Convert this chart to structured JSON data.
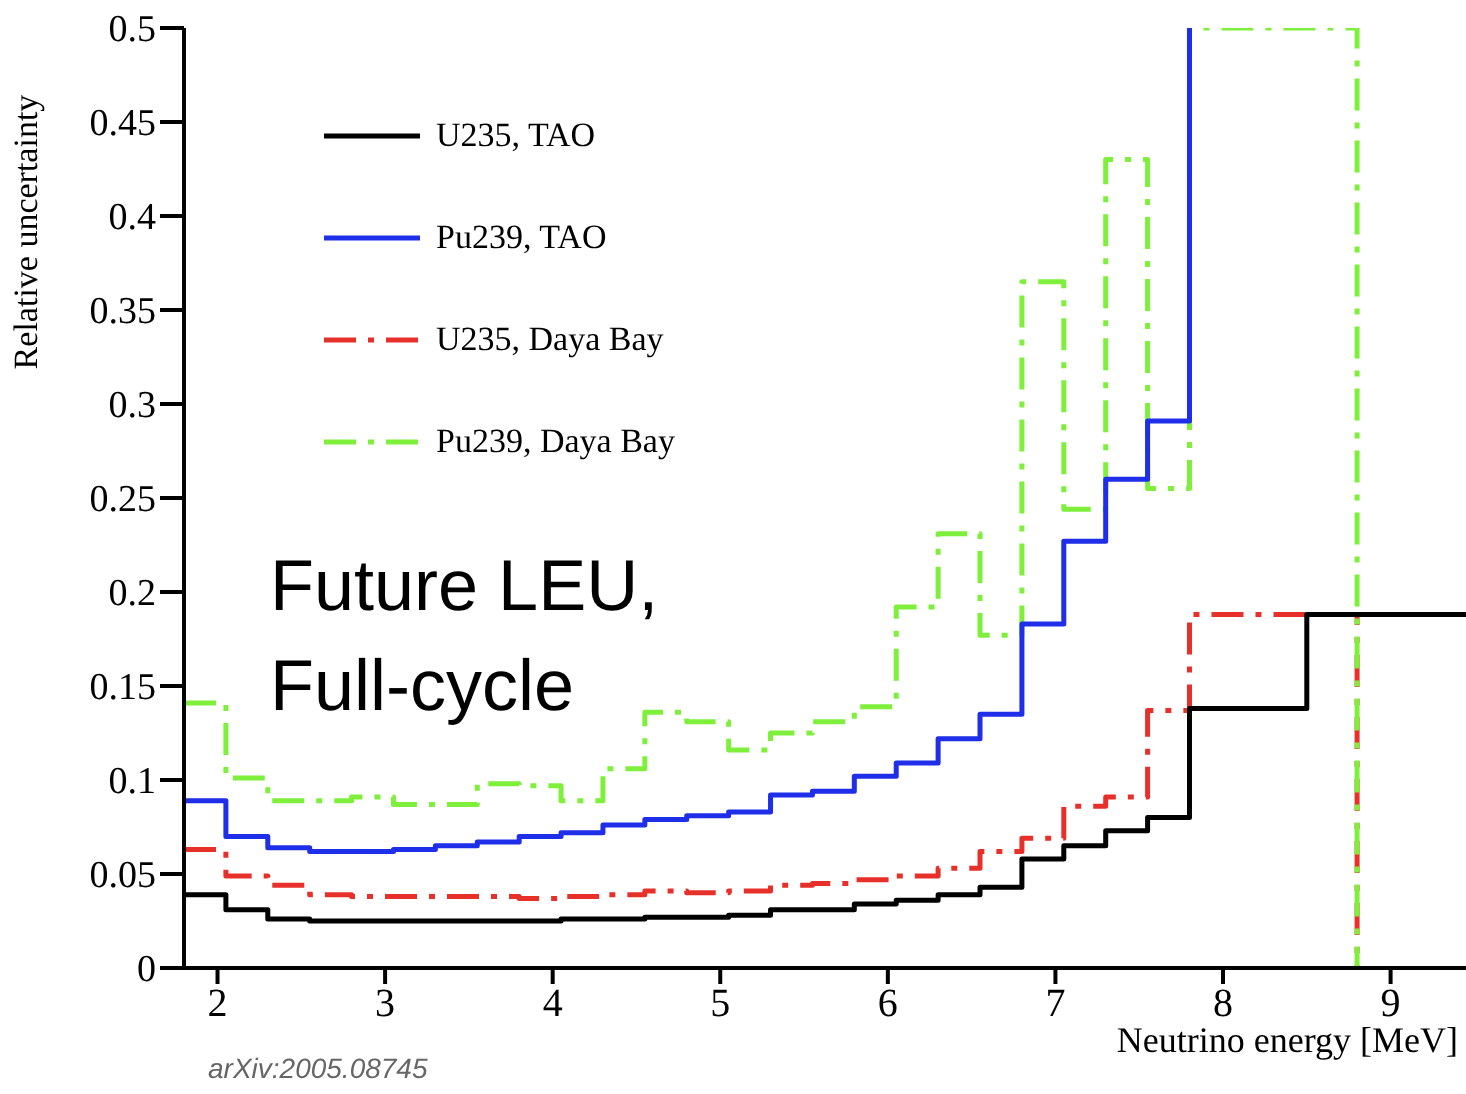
{
  "chart_data": {
    "type": "step",
    "xlabel": "Neutrino energy [MeV]",
    "ylabel": "Relative uncertainty",
    "xlim": [
      1.8,
      9.45
    ],
    "xticks": [
      2,
      3,
      4,
      5,
      6,
      7,
      8,
      9
    ],
    "ylim": [
      0,
      0.5
    ],
    "yticks": [
      0,
      0.05,
      0.1,
      0.15,
      0.2,
      0.25,
      0.3,
      0.35,
      0.4,
      0.45,
      0.5
    ],
    "legend": "top left",
    "grid": false,
    "marker": "none",
    "annotations": [
      "Future LEU, Full-cycle",
      "arXiv:2005.08745"
    ],
    "series": [
      {
        "name": "U235, TAO",
        "color": "#000000",
        "line_style": "solid",
        "x": [
          1.8,
          2.05,
          2.3,
          2.55,
          2.8,
          3.05,
          3.3,
          3.55,
          3.8,
          4.05,
          4.3,
          4.55,
          4.8,
          5.05,
          5.3,
          5.55,
          5.8,
          6.05,
          6.3,
          6.55,
          6.8,
          7.05,
          7.3,
          7.55,
          7.8,
          8.5,
          9.45
        ],
        "values": [
          0.039,
          0.031,
          0.026,
          0.025,
          0.025,
          0.025,
          0.025,
          0.025,
          0.025,
          0.026,
          0.026,
          0.027,
          0.027,
          0.028,
          0.031,
          0.031,
          0.034,
          0.036,
          0.039,
          0.043,
          0.058,
          0.065,
          0.073,
          0.08,
          0.138,
          0.188,
          0.188
        ]
      },
      {
        "name": "Pu239, TAO",
        "color": "#1f2ee8",
        "line_style": "solid",
        "x": [
          1.8,
          2.05,
          2.3,
          2.55,
          2.8,
          3.05,
          3.3,
          3.55,
          3.8,
          4.05,
          4.3,
          4.55,
          4.8,
          5.05,
          5.3,
          5.55,
          5.8,
          6.05,
          6.3,
          6.55,
          6.8,
          7.05,
          7.3,
          7.55,
          7.8
        ],
        "values": [
          0.089,
          0.07,
          0.064,
          0.062,
          0.062,
          0.063,
          0.065,
          0.067,
          0.07,
          0.072,
          0.076,
          0.079,
          0.081,
          0.083,
          0.092,
          0.094,
          0.102,
          0.109,
          0.122,
          0.135,
          0.183,
          0.227,
          0.26,
          0.291,
          0.5
        ]
      },
      {
        "name": "U235, Daya Bay",
        "color": "#e8302a",
        "line_style": "dashed",
        "x": [
          1.8,
          2.05,
          2.3,
          2.55,
          2.8,
          3.05,
          3.3,
          3.55,
          3.8,
          4.05,
          4.3,
          4.55,
          4.8,
          5.05,
          5.3,
          5.55,
          5.8,
          6.05,
          6.3,
          6.55,
          6.8,
          7.05,
          7.3,
          7.55,
          7.8,
          8.8
        ],
        "values": [
          0.063,
          0.049,
          0.044,
          0.039,
          0.038,
          0.038,
          0.038,
          0.038,
          0.037,
          0.038,
          0.039,
          0.041,
          0.04,
          0.041,
          0.044,
          0.045,
          0.047,
          0.049,
          0.053,
          0.062,
          0.069,
          0.086,
          0.091,
          0.137,
          0.188,
          0
        ]
      },
      {
        "name": "Pu239, Daya Bay",
        "color": "#7ef03c",
        "line_style": "dashed",
        "x": [
          1.8,
          2.05,
          2.3,
          2.55,
          2.8,
          3.05,
          3.3,
          3.55,
          3.8,
          4.05,
          4.3,
          4.55,
          4.8,
          5.05,
          5.3,
          5.55,
          5.8,
          6.05,
          6.3,
          6.55,
          6.8,
          7.05,
          7.3,
          7.55,
          7.8,
          8.8
        ],
        "values": [
          0.141,
          0.101,
          0.089,
          0.089,
          0.091,
          0.087,
          0.087,
          0.098,
          0.097,
          0.089,
          0.106,
          0.136,
          0.131,
          0.116,
          0.125,
          0.131,
          0.139,
          0.192,
          0.231,
          0.177,
          0.365,
          0.244,
          0.43,
          0.255,
          0.5,
          0
        ]
      }
    ]
  }
}
